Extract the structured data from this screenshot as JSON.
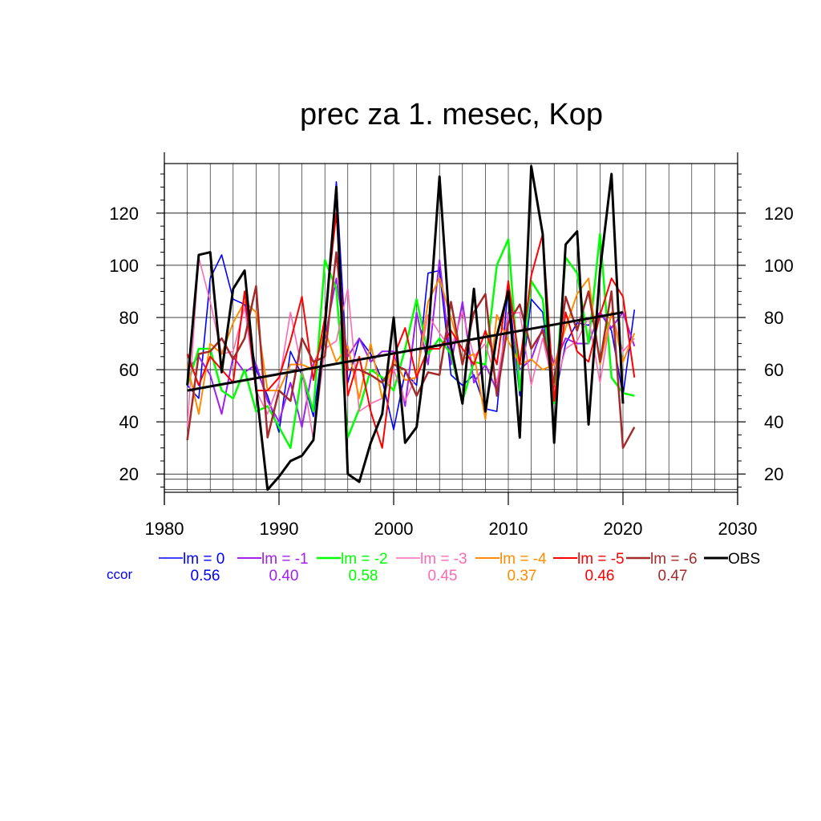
{
  "chart_data": {
    "type": "line",
    "title": "prec za 1. mesec, Kop",
    "xlim": [
      1980,
      2030
    ],
    "ylim": [
      13,
      139
    ],
    "x_ticks": [
      1980,
      1990,
      2000,
      2010,
      2020,
      2030
    ],
    "y_ticks": [
      20,
      40,
      60,
      80,
      100,
      120
    ],
    "x": [
      1982,
      1983,
      1984,
      1985,
      1986,
      1987,
      1988,
      1989,
      1990,
      1991,
      1992,
      1993,
      1994,
      1995,
      1996,
      1997,
      1998,
      1999,
      2000,
      2001,
      2002,
      2003,
      2004,
      2005,
      2006,
      2007,
      2008,
      2009,
      2010,
      2011,
      2012,
      2013,
      2014,
      2015,
      2016,
      2017,
      2018,
      2019,
      2020,
      2021
    ],
    "series": [
      {
        "name": "lm = 0",
        "color": "#0000ff",
        "width": 1.6,
        "values": [
          54,
          49,
          95,
          104,
          87,
          85,
          60,
          50,
          36,
          67,
          58,
          42,
          75,
          132,
          55,
          72,
          66,
          56,
          37,
          59,
          54,
          97,
          98,
          58,
          54,
          58,
          45,
          44,
          92,
          50,
          87,
          82,
          48,
          70,
          78,
          77,
          82,
          75,
          50,
          83
        ]
      },
      {
        "name": "lm = -1",
        "color": "#a020f0",
        "width": 2,
        "values": [
          60,
          65,
          58,
          43,
          65,
          59,
          62,
          48,
          40,
          55,
          38,
          62,
          72,
          95,
          65,
          72,
          63,
          67,
          67,
          46,
          82,
          62,
          102,
          62,
          86,
          55,
          62,
          52,
          82,
          60,
          64,
          76,
          62,
          72,
          70,
          70,
          82,
          76,
          82,
          69
        ]
      },
      {
        "name": "lm = -2",
        "color": "#00ff00",
        "width": 2.5,
        "values": [
          54,
          68,
          68,
          52,
          49,
          60,
          44,
          46,
          38,
          30,
          59,
          44,
          102,
          91,
          34,
          45,
          60,
          57,
          52,
          68,
          87,
          66,
          72,
          66,
          48,
          63,
          62,
          100,
          110,
          52,
          94,
          87,
          47,
          103,
          97,
          70,
          112,
          57,
          51,
          50
        ]
      },
      {
        "name": "lm = -3",
        "color": "#ff69b4",
        "width": 1.6,
        "values": [
          38,
          103,
          86,
          66,
          67,
          84,
          52,
          43,
          55,
          82,
          60,
          33,
          68,
          71,
          91,
          44,
          47,
          49,
          60,
          48,
          58,
          81,
          74,
          68,
          82,
          65,
          70,
          55,
          81,
          82,
          54,
          72,
          52,
          68,
          71,
          80,
          55,
          82,
          67,
          72
        ]
      },
      {
        "name": "lm = -4",
        "color": "#ff8c00",
        "width": 2,
        "values": [
          62,
          43,
          70,
          66,
          78,
          86,
          82,
          52,
          52,
          62,
          62,
          60,
          75,
          63,
          69,
          49,
          70,
          49,
          64,
          56,
          57,
          86,
          95,
          80,
          64,
          66,
          41,
          81,
          71,
          62,
          64,
          60,
          62,
          76,
          89,
          95,
          62,
          82,
          63,
          74
        ]
      },
      {
        "name": "lm = -5",
        "color": "#ff0000",
        "width": 2,
        "values": [
          66,
          54,
          65,
          60,
          55,
          90,
          52,
          52,
          57,
          71,
          88,
          56,
          80,
          120,
          50,
          65,
          44,
          30,
          65,
          76,
          57,
          68,
          68,
          75,
          68,
          62,
          75,
          62,
          94,
          62,
          96,
          112,
          48,
          82,
          67,
          63,
          81,
          95,
          88,
          57
        ]
      },
      {
        "name": "lm = -6",
        "color": "#a52a2a",
        "width": 2.5,
        "values": [
          33,
          66,
          67,
          72,
          64,
          72,
          92,
          34,
          52,
          48,
          72,
          63,
          65,
          105,
          60,
          60,
          58,
          55,
          62,
          60,
          50,
          59,
          58,
          86,
          62,
          82,
          89,
          50,
          78,
          85,
          68,
          75,
          55,
          88,
          75,
          90,
          63,
          90,
          30,
          38
        ]
      },
      {
        "name": "OBS",
        "color": "#000000",
        "width": 3,
        "values": [
          54,
          104,
          105,
          59,
          91,
          98,
          53,
          14,
          19,
          25,
          27,
          33,
          76,
          130,
          20,
          17,
          32,
          43,
          80,
          32,
          38,
          72,
          134,
          69,
          47,
          91,
          44,
          73,
          90,
          34,
          138,
          112,
          32,
          108,
          113,
          39,
          98,
          135,
          47,
          null
        ]
      }
    ],
    "trend": {
      "x": [
        1982,
        2020
      ],
      "y": [
        52,
        82
      ],
      "color": "#000000"
    },
    "hlines": [
      14,
      18
    ],
    "legend": {
      "placement": "bottom",
      "label": "ccor",
      "label_color": "#0000ff",
      "ccor": [
        "0.56",
        "0.40",
        "0.58",
        "0.45",
        "0.37",
        "0.46",
        "0.47"
      ]
    }
  }
}
